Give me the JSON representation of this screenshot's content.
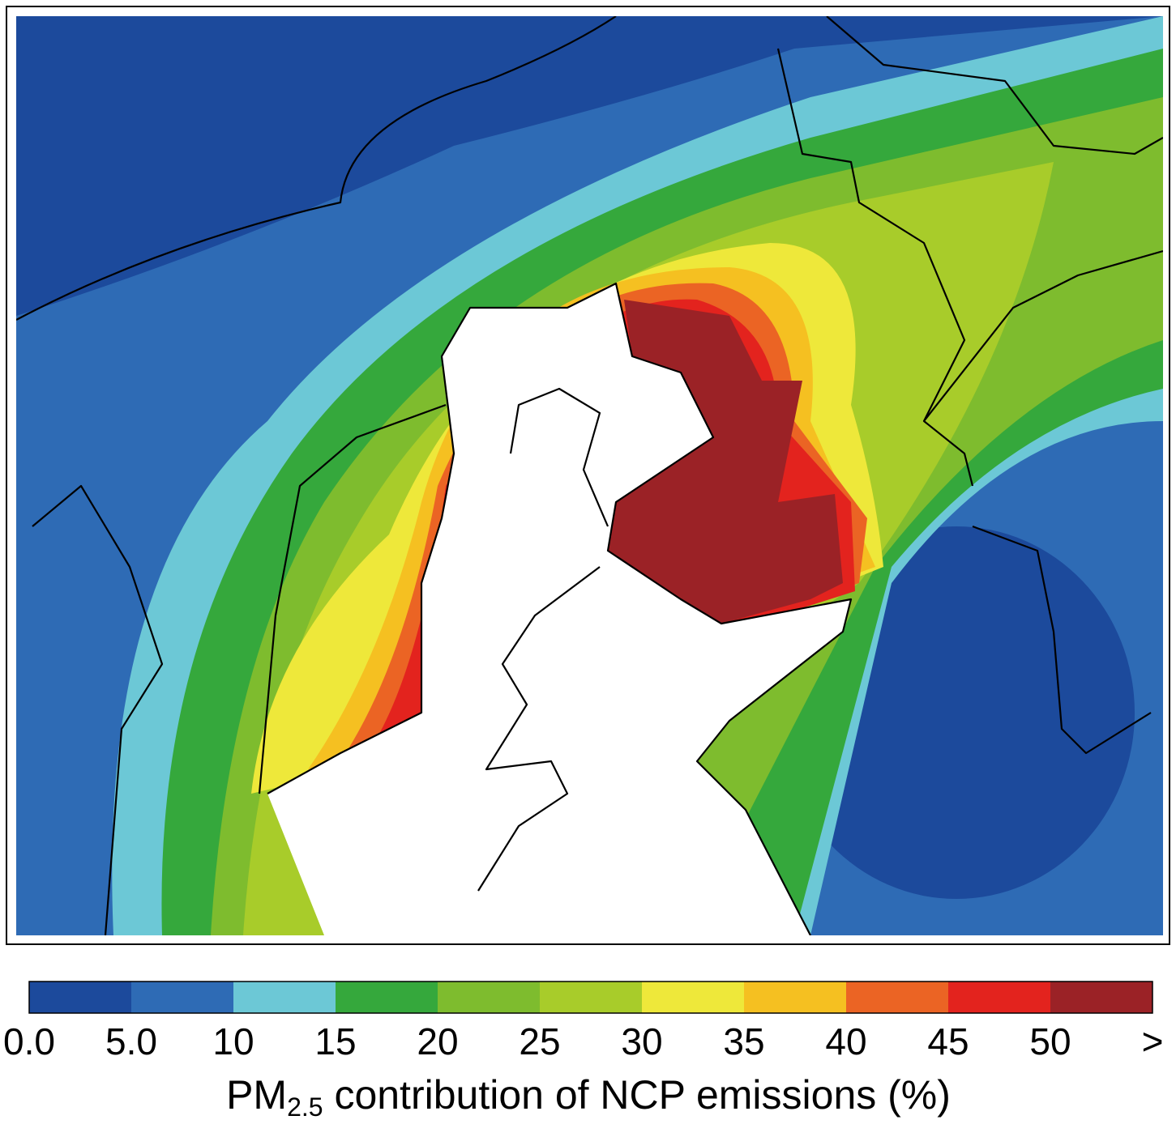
{
  "colorbar": {
    "colors": [
      "#1c4a9c",
      "#2e6bb5",
      "#6cc8d6",
      "#35a83c",
      "#7ebc2e",
      "#a8cc2a",
      "#eee83a",
      "#f5c021",
      "#eb6424",
      "#e3231e",
      "#9b2226"
    ],
    "ticks": [
      {
        "value": 0,
        "label": "0.0"
      },
      {
        "value": 5,
        "label": "5.0"
      },
      10,
      15,
      20,
      25,
      30,
      35,
      40,
      45,
      50
    ],
    "overflow_label": ">",
    "label": {
      "main": "PM",
      "sub": "2.5",
      "rest": " contribution of NCP emissions (%)"
    }
  }
}
